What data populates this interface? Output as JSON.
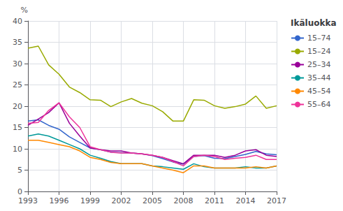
{
  "chart_data": {
    "type": "line",
    "x": [
      1993,
      1994,
      1995,
      1996,
      1997,
      1998,
      1999,
      2000,
      2001,
      2002,
      2003,
      2004,
      2005,
      2006,
      2007,
      2008,
      2009,
      2010,
      2011,
      2012,
      2013,
      2014,
      2015,
      2016,
      2017
    ],
    "series": [
      {
        "name": "15–74",
        "color": "#3366CC",
        "values": [
          16.5,
          16.8,
          15.5,
          14.6,
          12.8,
          11.5,
          10.2,
          9.8,
          9.2,
          9.1,
          9.0,
          8.8,
          8.4,
          7.7,
          6.9,
          6.4,
          8.2,
          8.4,
          7.8,
          7.7,
          8.2,
          8.7,
          9.4,
          8.8,
          8.6
        ]
      },
      {
        "name": "15–24",
        "color": "#99AA00",
        "values": [
          33.6,
          34.1,
          29.7,
          27.5,
          24.5,
          23.2,
          21.5,
          21.4,
          19.9,
          21.0,
          21.8,
          20.7,
          20.1,
          18.7,
          16.5,
          16.5,
          21.5,
          21.4,
          20.1,
          19.5,
          19.9,
          20.5,
          22.4,
          19.5,
          20.1
        ]
      },
      {
        "name": "25–34",
        "color": "#990099",
        "values": [
          15.5,
          17.0,
          18.5,
          20.8,
          16.0,
          13.0,
          10.2,
          9.8,
          9.5,
          9.5,
          9.0,
          8.8,
          8.5,
          8.0,
          7.2,
          6.5,
          8.5,
          8.5,
          8.5,
          8.0,
          8.5,
          9.5,
          9.8,
          8.5,
          8.2
        ]
      },
      {
        "name": "35–44",
        "color": "#009999",
        "values": [
          13.0,
          13.5,
          13.0,
          12.0,
          11.0,
          10.0,
          8.5,
          7.8,
          7.0,
          6.5,
          6.5,
          6.5,
          6.0,
          5.8,
          5.5,
          5.2,
          6.5,
          5.8,
          5.5,
          5.5,
          5.5,
          5.8,
          5.5,
          5.5,
          6.0
        ]
      },
      {
        "name": "45–54",
        "color": "#FF8800",
        "values": [
          12.0,
          12.0,
          11.5,
          11.0,
          10.5,
          9.5,
          8.0,
          7.5,
          6.8,
          6.5,
          6.5,
          6.5,
          6.0,
          5.5,
          5.0,
          4.4,
          6.0,
          6.0,
          5.5,
          5.5,
          5.5,
          5.5,
          5.8,
          5.5,
          6.0
        ]
      },
      {
        "name": "55–64",
        "color": "#EE3399",
        "values": [
          16.0,
          16.2,
          19.0,
          20.8,
          17.5,
          15.0,
          10.5,
          9.8,
          9.2,
          9.0,
          9.0,
          8.8,
          8.5,
          8.0,
          7.0,
          6.0,
          8.2,
          8.5,
          8.2,
          7.5,
          7.8,
          8.0,
          8.5,
          7.5,
          7.5
        ]
      }
    ],
    "xlim": [
      1993,
      2017
    ],
    "xticks": [
      1993,
      1996,
      1999,
      2002,
      2005,
      2008,
      2011,
      2014,
      2017
    ],
    "ylim": [
      0,
      40
    ],
    "yticks": [
      0,
      5,
      10,
      15,
      20,
      25,
      30,
      35,
      40
    ],
    "ylabel": "%",
    "legend_title": "Ikäluokka",
    "legend": "right",
    "grid": true
  }
}
